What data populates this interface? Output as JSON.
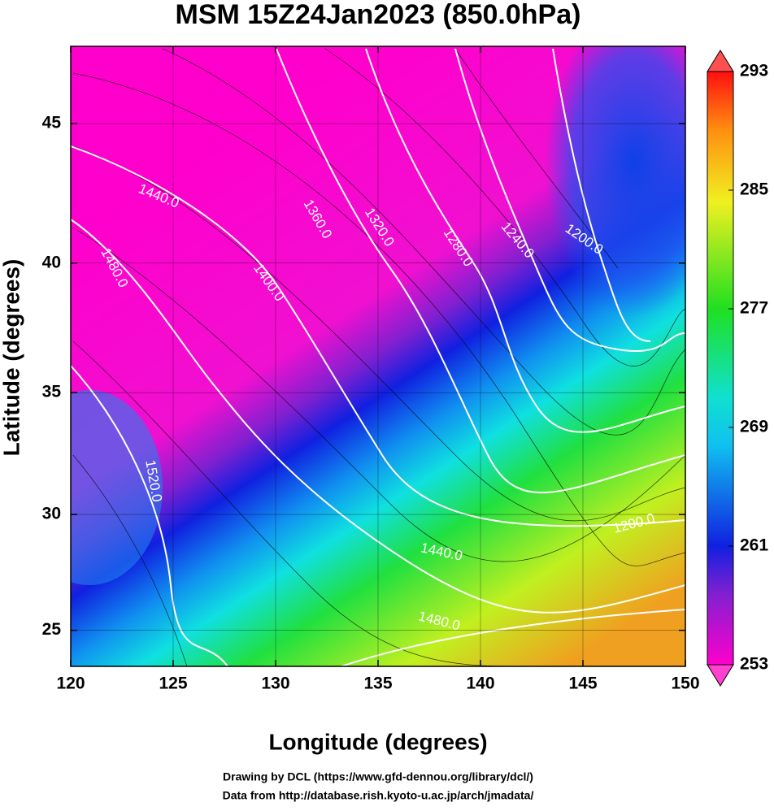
{
  "chart_data": {
    "type": "map",
    "projection": "mercator",
    "title": "MSM 15Z24Jan2023 (850.0hPa)",
    "x_label": "Longitude (degrees)",
    "y_label": "Latitude  (degrees)",
    "xlim": [
      120,
      150
    ],
    "xticks": [
      120,
      125,
      130,
      135,
      140,
      145,
      150
    ],
    "ylim": [
      23.4,
      47.6
    ],
    "yticks": [
      25,
      30,
      35,
      40,
      45
    ],
    "grid": true,
    "contour_labels": [
      "1440.0",
      "1480.0",
      "1360.0",
      "1320.0",
      "1280.0",
      "1240.0",
      "1200.0",
      "1400.0",
      "1520.0",
      "1440.0",
      "1480.0",
      "1200.0"
    ],
    "colorbar": {
      "lim": [
        253,
        293
      ],
      "ticks": [
        253,
        261,
        269,
        277,
        285,
        293
      ]
    },
    "credits": [
      "Drawing by DCL (https://www.gfd-dennou.org/library/dcl/)",
      "Data from http://database.rish.kyoto-u.ac.jp/arch/jmadata/"
    ]
  }
}
